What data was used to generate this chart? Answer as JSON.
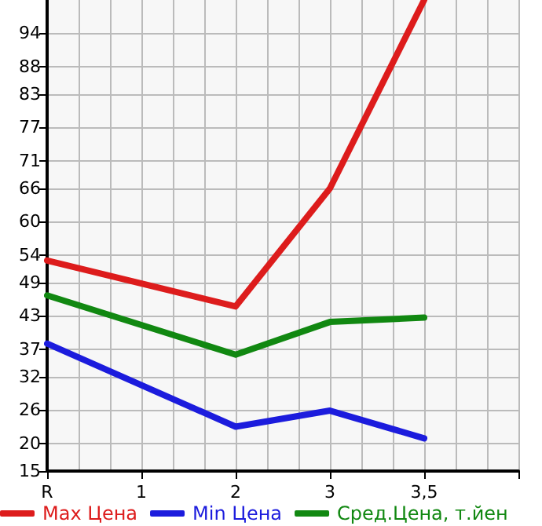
{
  "chart_data": {
    "type": "line",
    "categories": [
      "R",
      "1",
      "2",
      "3",
      "3,5",
      null
    ],
    "series": [
      {
        "name": "Max Цена",
        "color": "#dd1c1c",
        "values": [
          53,
          null,
          44.7,
          66,
          100,
          null
        ]
      },
      {
        "name": "Min Цена",
        "color": "#1c1cdd",
        "values": [
          38,
          null,
          23,
          25.9,
          20.9,
          null
        ]
      },
      {
        "name": "Сред.Цена, т.йен",
        "color": "#118811",
        "values": [
          46.7,
          null,
          36,
          41.9,
          42.7,
          null
        ]
      }
    ],
    "ylim": [
      15,
      100
    ],
    "yticks": [
      15,
      20,
      26,
      32,
      37,
      43,
      49,
      54,
      60,
      66,
      71,
      77,
      83,
      88,
      94
    ],
    "grid": true,
    "legend": "bottom",
    "marker": "none",
    "line_style": "solid"
  }
}
